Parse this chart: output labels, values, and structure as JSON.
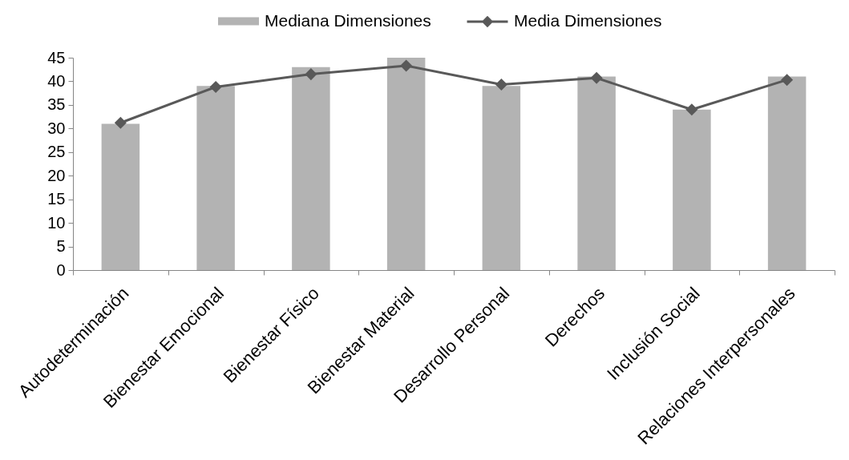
{
  "chart_data": {
    "type": "bar",
    "categories": [
      "Autodeterminación",
      "Bienestar Emocional",
      "Bienestar Físico",
      "Bienestar Material",
      "Desarrollo Personal",
      "Derechos",
      "Inclusión Social",
      "Relaciones Interpersonales"
    ],
    "series": [
      {
        "name": "Mediana Dimensiones",
        "color": "#b3b3b3",
        "values": [
          31,
          39,
          43,
          45,
          39,
          41,
          34,
          41
        ]
      },
      {
        "name": "Media Dimensiones",
        "type": "line",
        "color": "#595959",
        "marker": "diamond",
        "values": [
          31.2,
          38.8,
          41.5,
          43.3,
          39.3,
          40.7,
          34.0,
          40.3
        ]
      }
    ],
    "ylim": [
      0,
      45
    ],
    "yticks": [
      0,
      5,
      10,
      15,
      20,
      25,
      30,
      35,
      40,
      45
    ],
    "legend": "top"
  }
}
